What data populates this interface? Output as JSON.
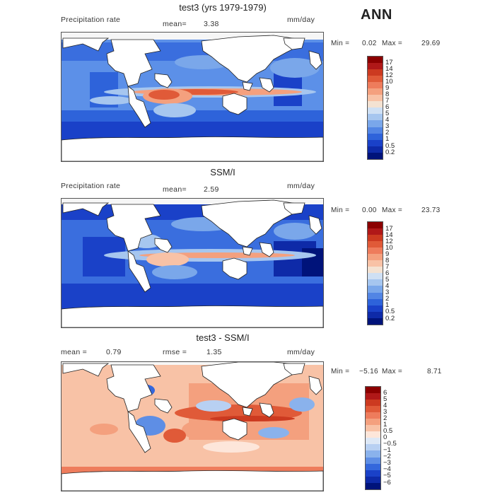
{
  "season": "ANN",
  "panels": [
    {
      "id": "model",
      "title": "test3 (yrs 1979-1979)",
      "left_label": "Precipitation rate",
      "stat1_label": "mean=",
      "stat1_value": "3.38",
      "stat2_label": "",
      "stat2_value": "",
      "units": "mm/day",
      "min_label": "Min =",
      "min_value": "0.02",
      "max_label": "Max =",
      "max_value": "29.69",
      "colorbar": {
        "ticks": [
          "17",
          "14",
          "12",
          "10",
          "9",
          "8",
          "7",
          "6",
          "5",
          "4",
          "3",
          "2",
          "1",
          "0.5",
          "0.2"
        ],
        "colors": [
          "#8b0000",
          "#b01818",
          "#cc3a20",
          "#e05a38",
          "#ee7c5c",
          "#f4a07e",
          "#f8c2a6",
          "#f4e2d2",
          "#cfe0f4",
          "#a6c6ef",
          "#7aa7ea",
          "#5285e4",
          "#2e63da",
          "#1a41c8",
          "#0e2aa8",
          "#00137a"
        ]
      }
    },
    {
      "id": "obs",
      "title": "SSM/I",
      "left_label": "Precipitation rate",
      "stat1_label": "mean=",
      "stat1_value": "2.59",
      "stat2_label": "",
      "stat2_value": "",
      "units": "mm/day",
      "min_label": "Min =",
      "min_value": "0.00",
      "max_label": "Max =",
      "max_value": "23.73",
      "colorbar": {
        "ticks": [
          "17",
          "14",
          "12",
          "10",
          "9",
          "8",
          "7",
          "6",
          "5",
          "4",
          "3",
          "2",
          "1",
          "0.5",
          "0.2"
        ],
        "colors": [
          "#8b0000",
          "#b01818",
          "#cc3a20",
          "#e05a38",
          "#ee7c5c",
          "#f4a07e",
          "#f8c2a6",
          "#f4e2d2",
          "#cfe0f4",
          "#a6c6ef",
          "#7aa7ea",
          "#5285e4",
          "#2e63da",
          "#1a41c8",
          "#0e2aa8",
          "#00137a"
        ]
      }
    },
    {
      "id": "diff",
      "title": "test3 - SSM/I",
      "left_label": "",
      "stat1_label": "mean =",
      "stat1_value": "0.79",
      "stat2_label": "rmse =",
      "stat2_value": "1.35",
      "units": "mm/day",
      "min_label": "Min =",
      "min_value": "−5.16",
      "max_label": "Max =",
      "max_value": "8.71",
      "colorbar": {
        "ticks": [
          "6",
          "5",
          "4",
          "3",
          "2",
          "1",
          "0.5",
          "0",
          "−0.5",
          "−1",
          "−2",
          "−3",
          "−4",
          "−5",
          "−6"
        ],
        "colors": [
          "#8b0000",
          "#b01818",
          "#cc3a20",
          "#e05a38",
          "#ee7c5c",
          "#f4a07e",
          "#f8c2a6",
          "#fde6da",
          "#dde8f6",
          "#b8d0f2",
          "#8ab2ec",
          "#5e8ee5",
          "#3467dc",
          "#1a41c8",
          "#0e2aa8",
          "#00137a"
        ]
      }
    }
  ]
}
